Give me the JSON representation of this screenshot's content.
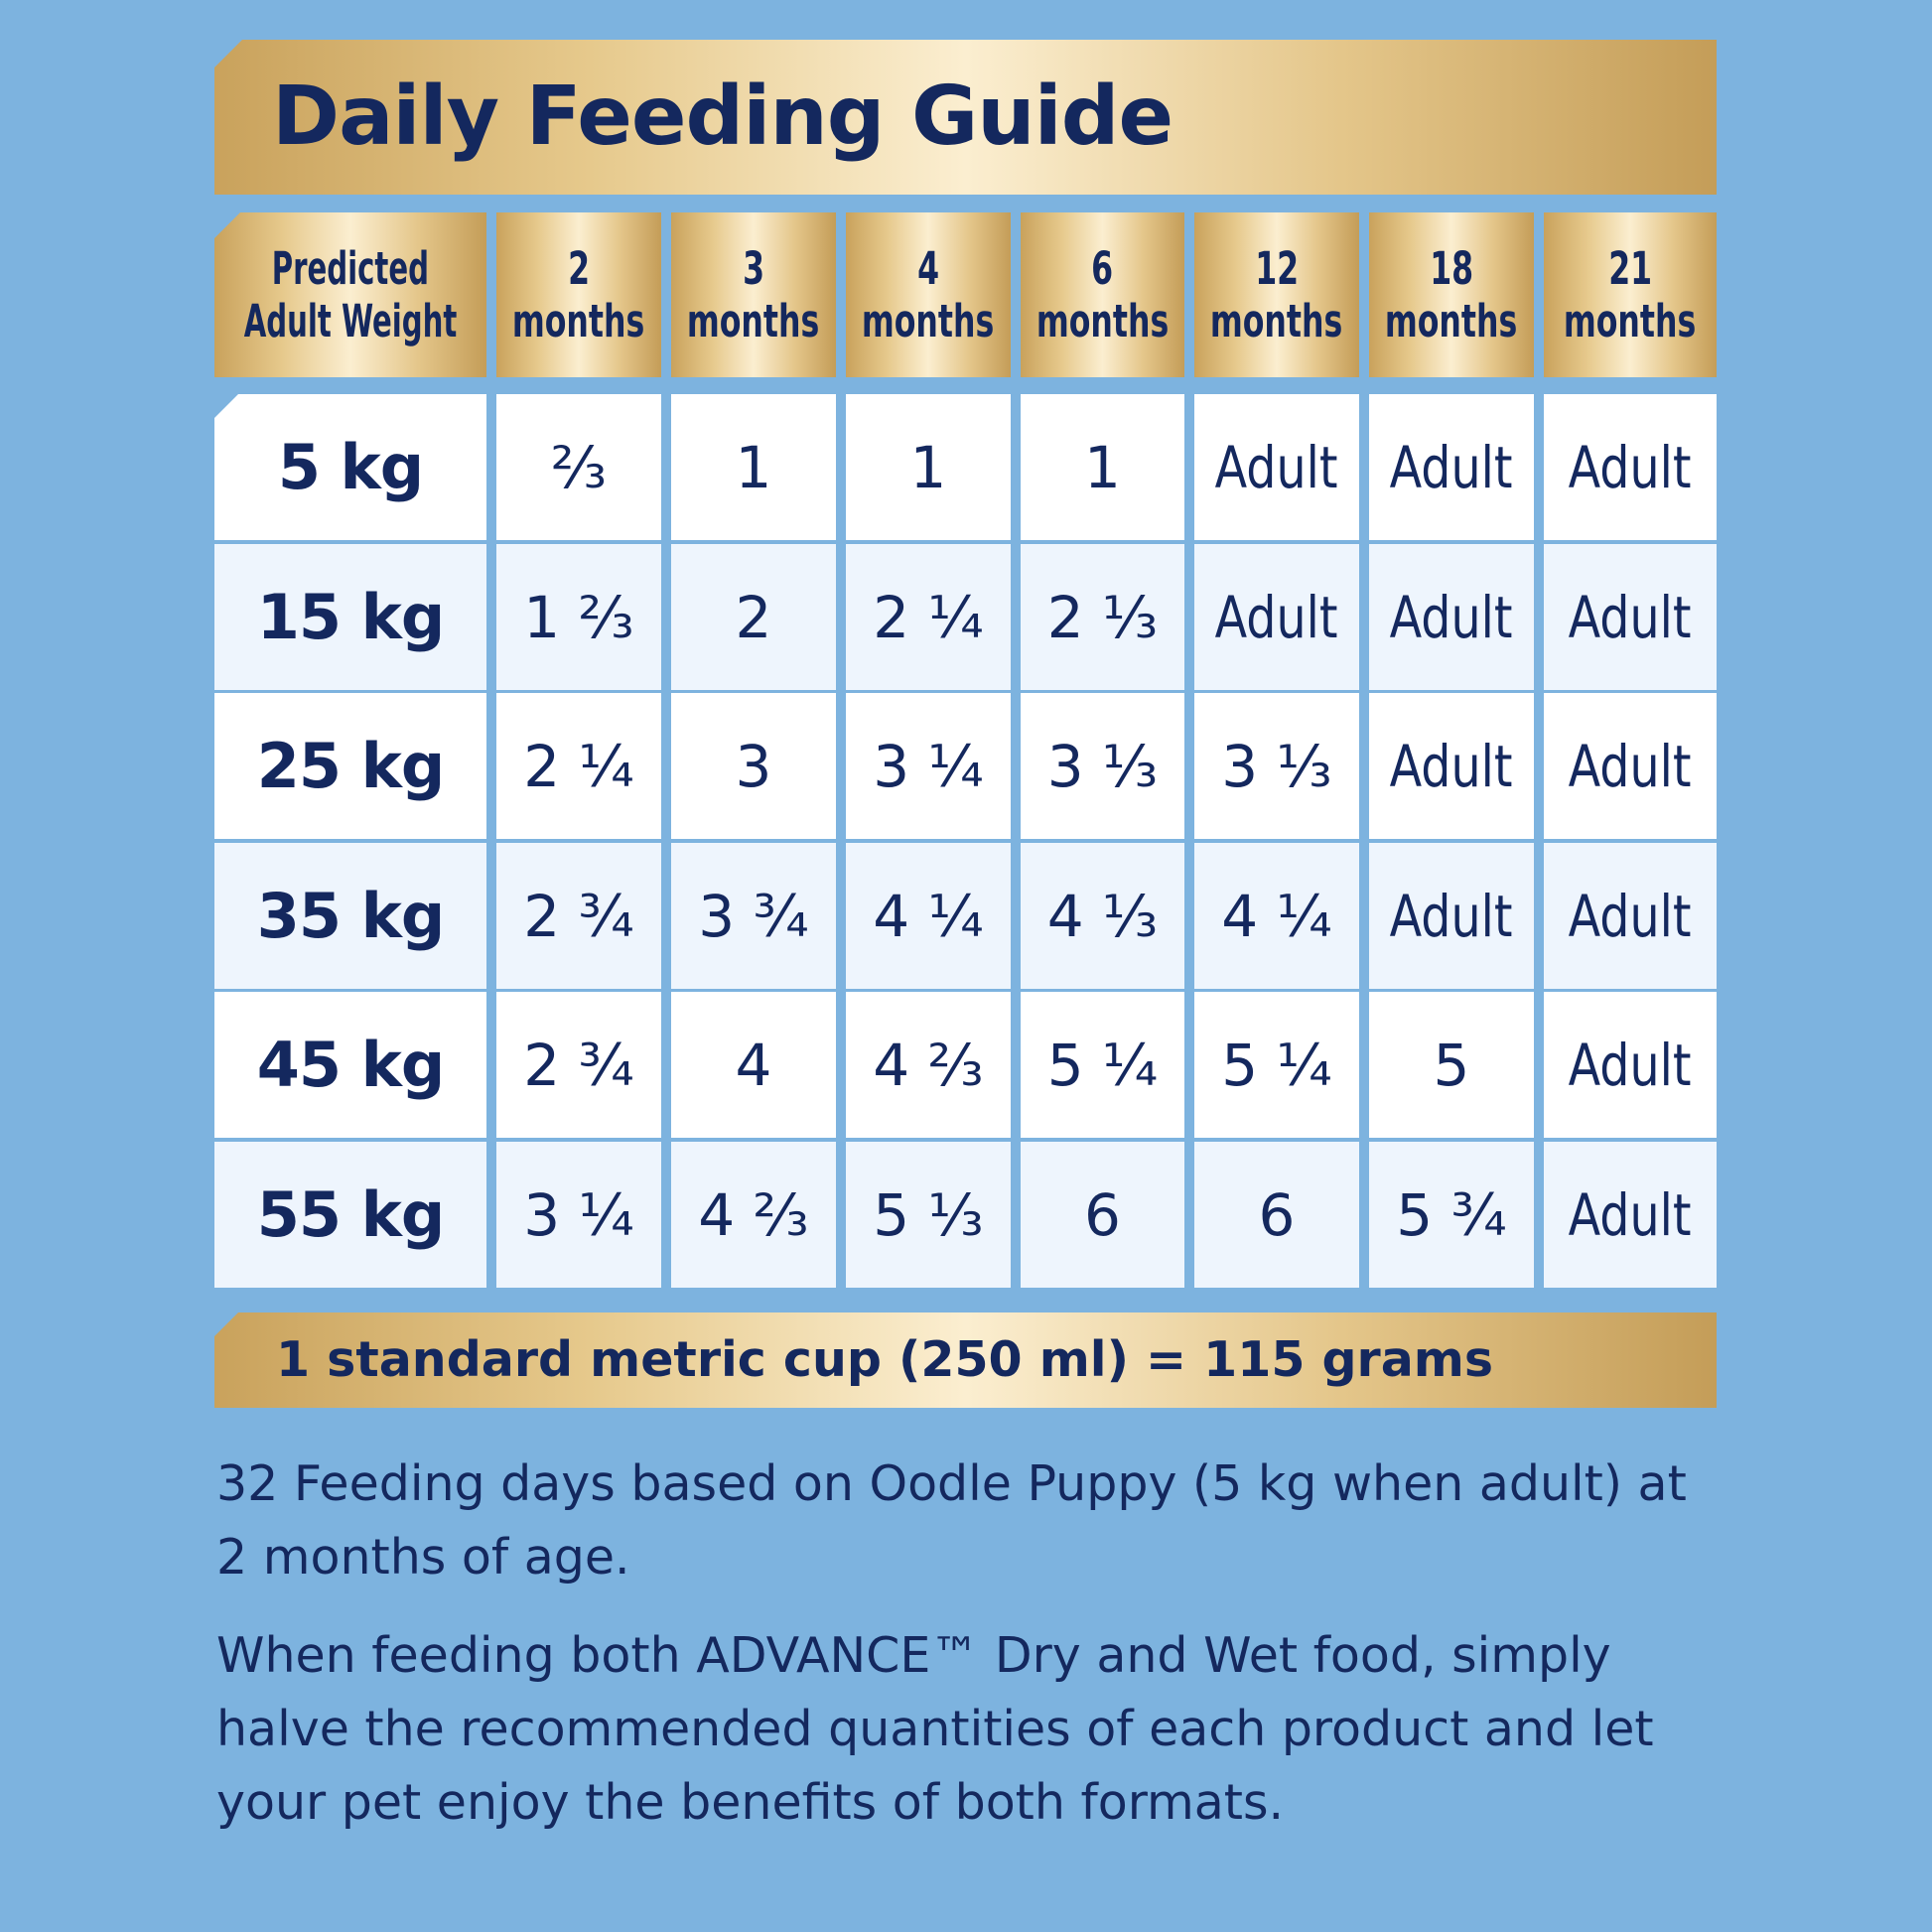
{
  "title": "Daily Feeding Guide",
  "header": {
    "weight_line1": "Predicted",
    "weight_line2": "Adult Weight",
    "ages": [
      {
        "num": "2",
        "unit": "months"
      },
      {
        "num": "3",
        "unit": "months"
      },
      {
        "num": "4",
        "unit": "months"
      },
      {
        "num": "6",
        "unit": "months"
      },
      {
        "num": "12",
        "unit": "months"
      },
      {
        "num": "18",
        "unit": "months"
      },
      {
        "num": "21",
        "unit": "months"
      }
    ]
  },
  "rows": [
    {
      "weight": "5 kg",
      "cells": [
        "⅔",
        "1",
        "1",
        "1",
        "Adult",
        "Adult",
        "Adult"
      ]
    },
    {
      "weight": "15 kg",
      "cells": [
        "1 ⅔",
        "2",
        "2 ¼",
        "2 ⅓",
        "Adult",
        "Adult",
        "Adult"
      ]
    },
    {
      "weight": "25 kg",
      "cells": [
        "2 ¼",
        "3",
        "3 ¼",
        "3 ⅓",
        "3 ⅓",
        "Adult",
        "Adult"
      ]
    },
    {
      "weight": "35 kg",
      "cells": [
        "2 ¾",
        "3 ¾",
        "4 ¼",
        "4 ⅓",
        "4 ¼",
        "Adult",
        "Adult"
      ]
    },
    {
      "weight": "45 kg",
      "cells": [
        "2 ¾",
        "4",
        "4 ⅔",
        "5 ¼",
        "5 ¼",
        "5",
        "Adult"
      ]
    },
    {
      "weight": "55 kg",
      "cells": [
        "3 ¼",
        "4 ⅔",
        "5 ⅓",
        "6",
        "6",
        "5 ¾",
        "Adult"
      ]
    }
  ],
  "cup_note": "1 standard metric cup (250 ml) = 115 grams",
  "note1": "32 Feeding days based on Oodle Puppy (5 kg when adult) at 2 months of age.",
  "note2": "When feeding both ADVANCE™ Dry and Wet food, simply halve the recommended quantities of each product and let your pet enjoy the benefits of both formats.",
  "colors": {
    "background": "#7db3df",
    "navy": "#14285e",
    "gold": "#d8b774",
    "row_white": "#ffffff",
    "row_tint": "#eef5fd"
  }
}
